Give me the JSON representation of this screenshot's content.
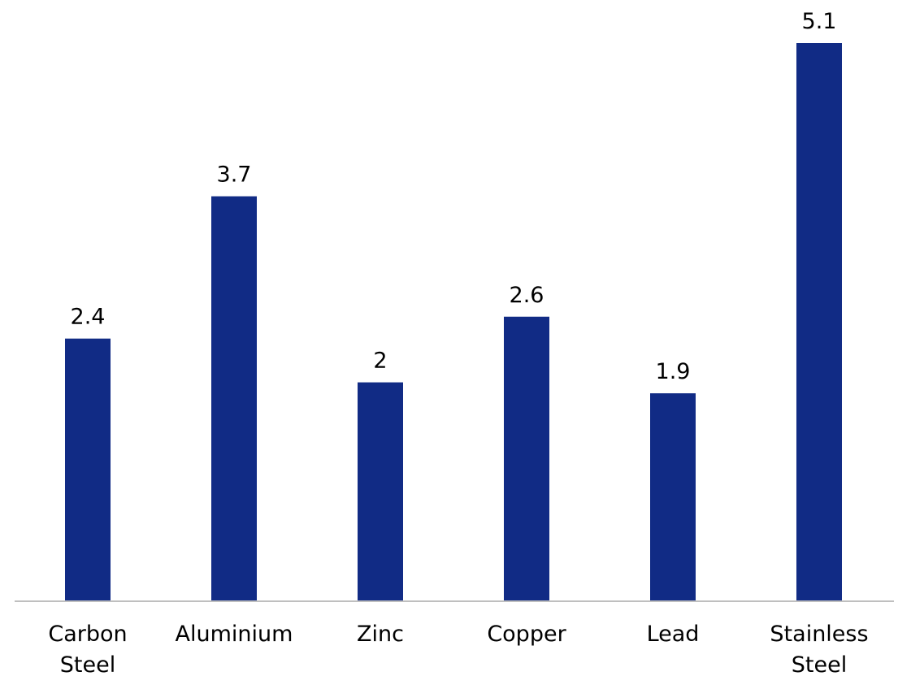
{
  "chart_data": {
    "type": "bar",
    "title": "",
    "xlabel": "",
    "ylabel": "",
    "categories": [
      [
        "Carbon",
        "Steel"
      ],
      [
        "Aluminium"
      ],
      [
        "Zinc"
      ],
      [
        "Copper"
      ],
      [
        "Lead"
      ],
      [
        "Stainless",
        "Steel"
      ]
    ],
    "values": [
      2.4,
      3.7,
      2,
      2.6,
      1.9,
      5.1
    ],
    "value_labels": [
      "2.4",
      "3.7",
      "2",
      "2.6",
      "1.9",
      "5.1"
    ],
    "ylim": [
      0,
      5.1
    ],
    "grid": false,
    "legend": "none",
    "bar_color": "#112B85",
    "axis_color": "#BFBFBF"
  }
}
